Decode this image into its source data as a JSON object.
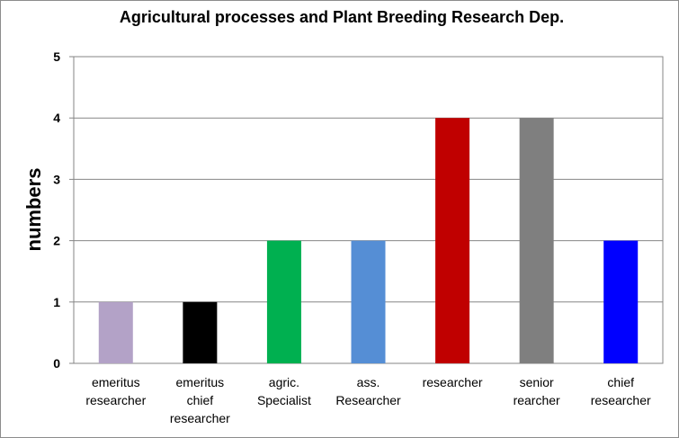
{
  "chart_data": {
    "type": "bar",
    "title": "Agricultural processes and Plant Breeding Research Dep.",
    "xlabel": "",
    "ylabel": "numbers",
    "ylim": [
      0,
      5
    ],
    "yticks": [
      "0",
      "1",
      "2",
      "3",
      "4",
      "5"
    ],
    "grid": true,
    "categories": [
      [
        "emeritus",
        "researcher"
      ],
      [
        "emeritus",
        "chief",
        "researcher"
      ],
      [
        "agric.",
        "Specialist"
      ],
      [
        "ass.",
        "Researcher"
      ],
      [
        "researcher"
      ],
      [
        "senior",
        "rearcher"
      ],
      [
        "chief",
        "researcher"
      ]
    ],
    "values": [
      1,
      1,
      2,
      2,
      4,
      4,
      2
    ],
    "colors": [
      "#b3a2c7",
      "#000000",
      "#00b050",
      "#558ed5",
      "#c00000",
      "#7f7f7f",
      "#0000ff"
    ]
  }
}
